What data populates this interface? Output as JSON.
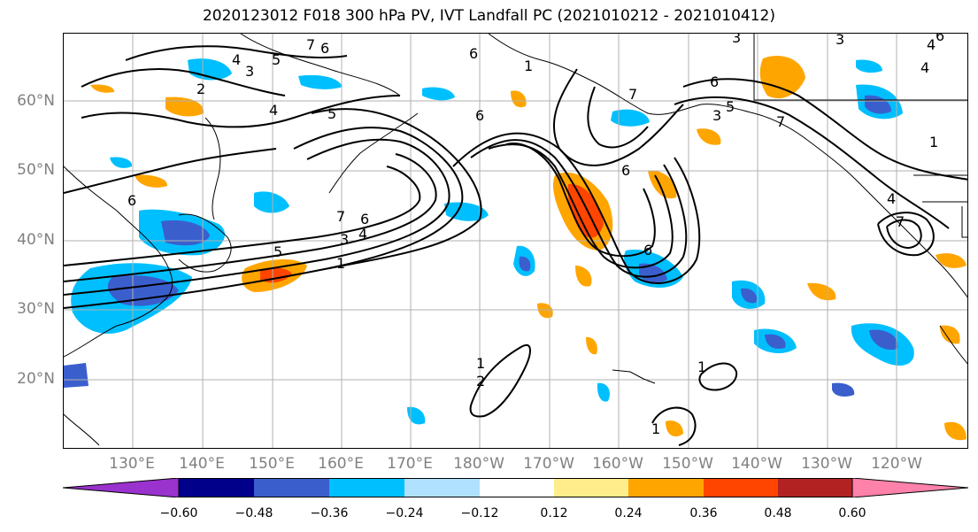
{
  "title": "2020123012 F018 300 hPa PV, IVT Landfall PC (2021010212 - 2021010412)",
  "latitude_labels": [
    "60°N",
    "50°N",
    "40°N",
    "30°N",
    "20°N"
  ],
  "longitude_labels": [
    "130°E",
    "140°E",
    "150°E",
    "160°E",
    "170°E",
    "180°W",
    "170°W",
    "160°W",
    "150°W",
    "140°W",
    "130°W",
    "120°W"
  ],
  "colorbar": {
    "ticks": [
      "−0.60",
      "−0.48",
      "−0.36",
      "−0.24",
      "−0.12",
      "0.12",
      "0.24",
      "0.36",
      "0.48",
      "0.60"
    ],
    "colors": [
      "#9a32cd",
      "#00008b",
      "#3a5fcd",
      "#00bfff",
      "#b0e2ff",
      "#ffffff",
      "#ffec8b",
      "#ffa500",
      "#ff4500",
      "#b22222",
      "#ff82ab"
    ]
  },
  "contour_labels": [
    "1",
    "2",
    "3",
    "4",
    "5",
    "6",
    "7"
  ],
  "grid": "on"
}
